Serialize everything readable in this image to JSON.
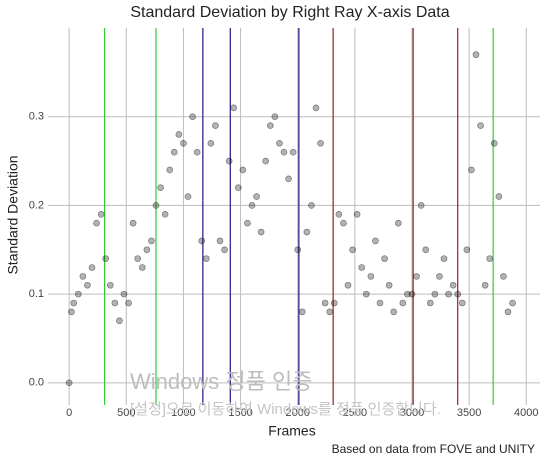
{
  "chart_data": {
    "type": "scatter",
    "title": "Standard Deviation by Right Ray X-axis Data",
    "x_label": "Frames",
    "y_label": "Standard Deviation",
    "caption": "Based on data from FOVE and UNITY",
    "watermark": [
      "Windows 정품 인증",
      "[설정]으로 이동하여 Windows를 정품 인증합니다."
    ],
    "xlim": [
      -185,
      4120
    ],
    "ylim": [
      -0.025,
      0.4
    ],
    "xticks": [
      0,
      500,
      1000,
      1500,
      2000,
      2500,
      3000,
      3500,
      4000
    ],
    "yticks": [
      {
        "value": 0,
        "label": "0.0"
      },
      0.1,
      0.2,
      0.3
    ],
    "grid": true,
    "point_color": "#000000",
    "x": [
      0,
      20,
      40,
      80,
      120,
      160,
      200,
      240,
      280,
      320,
      360,
      400,
      440,
      480,
      520,
      560,
      600,
      640,
      680,
      720,
      760,
      800,
      840,
      880,
      920,
      960,
      1000,
      1040,
      1080,
      1120,
      1160,
      1200,
      1240,
      1280,
      1320,
      1360,
      1400,
      1440,
      1480,
      1520,
      1560,
      1600,
      1640,
      1680,
      1720,
      1760,
      1800,
      1840,
      1880,
      1920,
      1960,
      2000,
      2040,
      2080,
      2120,
      2160,
      2200,
      2240,
      2280,
      2320,
      2360,
      2400,
      2440,
      2480,
      2520,
      2560,
      2600,
      2640,
      2680,
      2720,
      2760,
      2800,
      2840,
      2880,
      2920,
      2960,
      3000,
      3040,
      3080,
      3120,
      3160,
      3200,
      3240,
      3280,
      3320,
      3360,
      3400,
      3440,
      3480,
      3520,
      3560,
      3600,
      3640,
      3680,
      3720,
      3760,
      3800,
      3840,
      3880
    ],
    "values": [
      0.0,
      0.08,
      0.09,
      0.1,
      0.12,
      0.11,
      0.13,
      0.18,
      0.19,
      0.14,
      0.11,
      0.09,
      0.07,
      0.1,
      0.09,
      0.18,
      0.14,
      0.13,
      0.15,
      0.16,
      0.2,
      0.22,
      0.19,
      0.24,
      0.26,
      0.28,
      0.27,
      0.21,
      0.3,
      0.26,
      0.16,
      0.14,
      0.27,
      0.29,
      0.16,
      0.15,
      0.25,
      0.31,
      0.22,
      0.24,
      0.18,
      0.2,
      0.21,
      0.17,
      0.25,
      0.29,
      0.3,
      0.27,
      0.26,
      0.23,
      0.26,
      0.15,
      0.08,
      0.17,
      0.2,
      0.31,
      0.27,
      0.09,
      0.08,
      0.09,
      0.19,
      0.18,
      0.11,
      0.15,
      0.19,
      0.13,
      0.1,
      0.12,
      0.16,
      0.09,
      0.14,
      0.11,
      0.08,
      0.18,
      0.09,
      0.1,
      0.1,
      0.12,
      0.2,
      0.15,
      0.09,
      0.1,
      0.12,
      0.14,
      0.1,
      0.11,
      0.1,
      0.09,
      0.15,
      0.24,
      0.37,
      0.29,
      0.11,
      0.14,
      0.27,
      0.21,
      0.12,
      0.08,
      0.09
    ],
    "vlines": [
      {
        "x": 310,
        "color": "#33cc33"
      },
      {
        "x": 760,
        "color": "#33cc33"
      },
      {
        "x": 3710,
        "color": "#33cc33"
      },
      {
        "x": 1170,
        "color": "#1a1a80"
      },
      {
        "x": 1410,
        "color": "#1a1a80"
      },
      {
        "x": 2010,
        "color": "#1a1a80"
      },
      {
        "x": 2310,
        "color": "#a01c1c"
      },
      {
        "x": 3010,
        "color": "#a01c1c"
      },
      {
        "x": 3400,
        "color": "#a01c1c"
      }
    ]
  }
}
